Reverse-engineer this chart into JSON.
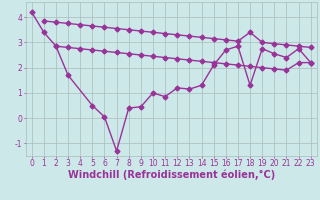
{
  "line1": {
    "x": [
      0,
      1,
      2,
      3,
      5,
      6,
      7,
      8,
      9,
      10,
      11,
      12,
      13,
      14,
      15,
      16,
      17,
      18,
      19,
      20,
      21,
      22,
      23
    ],
    "y": [
      4.2,
      3.4,
      2.85,
      1.7,
      0.5,
      0.05,
      -1.3,
      0.4,
      0.45,
      1.0,
      0.85,
      1.2,
      1.15,
      1.3,
      2.1,
      2.7,
      2.85,
      1.3,
      2.75,
      2.55,
      2.4,
      2.75,
      2.2
    ]
  },
  "line2": {
    "x": [
      1,
      2,
      3,
      4,
      5,
      6,
      7,
      8,
      9,
      10,
      11,
      12,
      13,
      14,
      15,
      16,
      17,
      18,
      19,
      20,
      21,
      22,
      23
    ],
    "y": [
      3.85,
      3.8,
      3.75,
      3.7,
      3.65,
      3.6,
      3.55,
      3.5,
      3.45,
      3.4,
      3.35,
      3.3,
      3.25,
      3.2,
      3.15,
      3.1,
      3.05,
      3.4,
      3.0,
      2.95,
      2.9,
      2.85,
      2.8
    ]
  },
  "line3": {
    "x": [
      2,
      3,
      4,
      5,
      6,
      7,
      8,
      9,
      10,
      11,
      12,
      13,
      14,
      15,
      16,
      17,
      18,
      19,
      20,
      21,
      22,
      23
    ],
    "y": [
      2.85,
      2.8,
      2.75,
      2.7,
      2.65,
      2.6,
      2.55,
      2.5,
      2.45,
      2.4,
      2.35,
      2.3,
      2.25,
      2.2,
      2.15,
      2.1,
      2.05,
      2.0,
      1.95,
      1.9,
      2.2,
      2.2
    ]
  },
  "line_color": "#993399",
  "bg_color": "#cce8e8",
  "grid_color": "#aabbbb",
  "xlabel": "Windchill (Refroidissement éolien,°C)",
  "xlim": [
    -0.5,
    23.5
  ],
  "ylim": [
    -1.5,
    4.6
  ],
  "yticks": [
    -1,
    0,
    1,
    2,
    3,
    4
  ],
  "xticks": [
    0,
    1,
    2,
    3,
    4,
    5,
    6,
    7,
    8,
    9,
    10,
    11,
    12,
    13,
    14,
    15,
    16,
    17,
    18,
    19,
    20,
    21,
    22,
    23
  ],
  "marker": "D",
  "markersize": 2.5,
  "linewidth": 1.0,
  "tick_fontsize": 5.5,
  "xlabel_fontsize": 7.0
}
